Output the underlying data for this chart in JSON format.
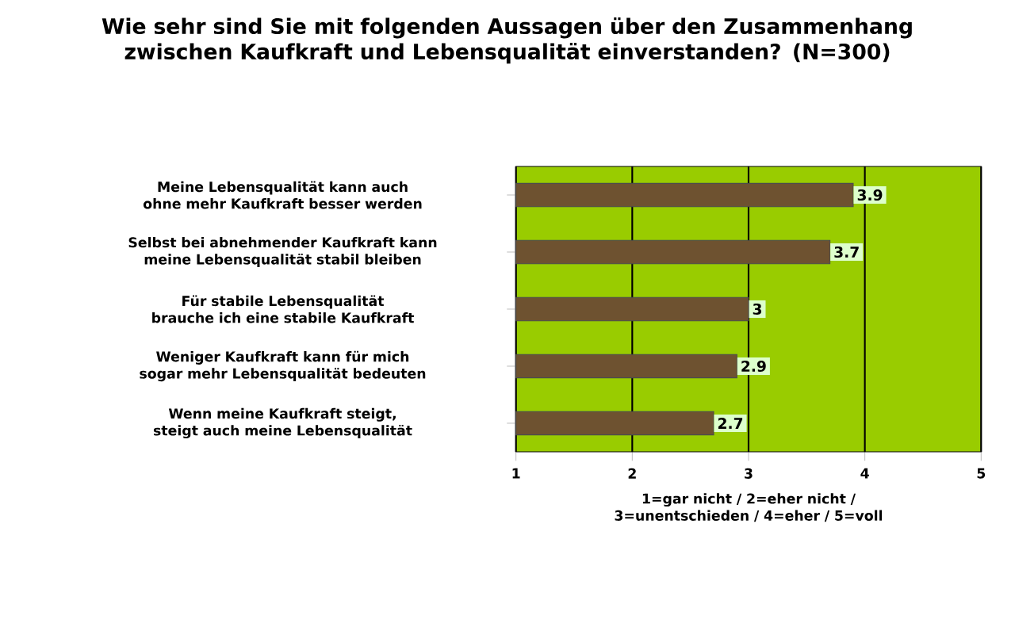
{
  "chart_data": {
    "type": "bar",
    "orientation": "horizontal",
    "title": "Wie sehr sind Sie mit folgenden Aussagen über den Zusammenhang zwischen Kaufkraft und Lebensqualität einverstanden? (N=300)",
    "xlabel": "1=gar nicht / 2=eher nicht / 3=unentschieden / 4=eher / 5=voll",
    "categories": [
      "Meine Lebensqualität kann auch ohne mehr Kaufkraft besser werden",
      "Selbst bei abnehmender Kaufkraft kann meine Lebensqualität stabil bleiben",
      "Für stabile Lebensqualität brauche ich eine stabile Kaufkraft",
      "Weniger Kaufkraft kann für mich sogar mehr Lebensqualität bedeuten",
      "Wenn meine Kaufkraft steigt, steigt auch meine Lebensqualität"
    ],
    "values": [
      3.9,
      3.7,
      3,
      2.9,
      2.7
    ],
    "color": "#6e5230",
    "xlim": [
      1,
      5
    ],
    "xticks": [
      1,
      2,
      3,
      4,
      5
    ],
    "grid": "x",
    "data_labels": true
  }
}
